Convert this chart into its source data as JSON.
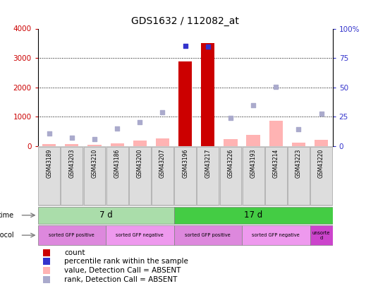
{
  "title": "GDS1632 / 112082_at",
  "samples": [
    "GSM43189",
    "GSM43203",
    "GSM43210",
    "GSM43186",
    "GSM43200",
    "GSM43207",
    "GSM43196",
    "GSM43217",
    "GSM43226",
    "GSM43193",
    "GSM43214",
    "GSM43223",
    "GSM43220"
  ],
  "count_values": [
    0,
    0,
    0,
    0,
    0,
    0,
    2880,
    3500,
    0,
    0,
    0,
    0,
    0
  ],
  "count_absent": [
    true,
    true,
    true,
    true,
    true,
    true,
    false,
    false,
    true,
    true,
    true,
    true,
    true
  ],
  "value_absent": [
    50,
    70,
    40,
    90,
    190,
    250,
    0,
    0,
    230,
    370,
    850,
    100,
    200
  ],
  "percentile_absent": [
    420,
    280,
    230,
    580,
    800,
    1150,
    0,
    0,
    960,
    1380,
    2020,
    560,
    1100
  ],
  "percentile_present_vals": [
    null,
    null,
    null,
    null,
    null,
    null,
    3400,
    3380,
    null,
    null,
    null,
    null,
    null
  ],
  "ylim_left": [
    0,
    4000
  ],
  "ylim_right": [
    0,
    100
  ],
  "yticks_left": [
    0,
    1000,
    2000,
    3000,
    4000
  ],
  "yticks_right": [
    0,
    25,
    50,
    75,
    100
  ],
  "ytick_labels_right": [
    "0",
    "25",
    "50",
    "75",
    "100%"
  ],
  "bar_color_present": "#cc0000",
  "bar_color_absent": "#ffb3b3",
  "dot_color_present": "#3333cc",
  "dot_color_absent": "#aaaacc",
  "time_7d_color": "#aaddaa",
  "time_17d_color": "#44cc44",
  "time_7d_label": "7 d",
  "time_17d_label": "17 d",
  "protocol_bounds": [
    {
      "start": 0,
      "end": 3,
      "label": "sorted GFP positive",
      "color": "#dd88dd"
    },
    {
      "start": 3,
      "end": 6,
      "label": "sorted GFP negative",
      "color": "#ee99ee"
    },
    {
      "start": 6,
      "end": 9,
      "label": "sorted GFP positive",
      "color": "#dd88dd"
    },
    {
      "start": 9,
      "end": 12,
      "label": "sorted GFP negative",
      "color": "#ee99ee"
    },
    {
      "start": 12,
      "end": 13,
      "label": "unsorte\nd",
      "color": "#cc44cc"
    }
  ],
  "legend_items": [
    {
      "label": "count",
      "color": "#cc0000"
    },
    {
      "label": "percentile rank within the sample",
      "color": "#3333cc"
    },
    {
      "label": "value, Detection Call = ABSENT",
      "color": "#ffb3b3"
    },
    {
      "label": "rank, Detection Call = ABSENT",
      "color": "#aaaacc"
    }
  ]
}
